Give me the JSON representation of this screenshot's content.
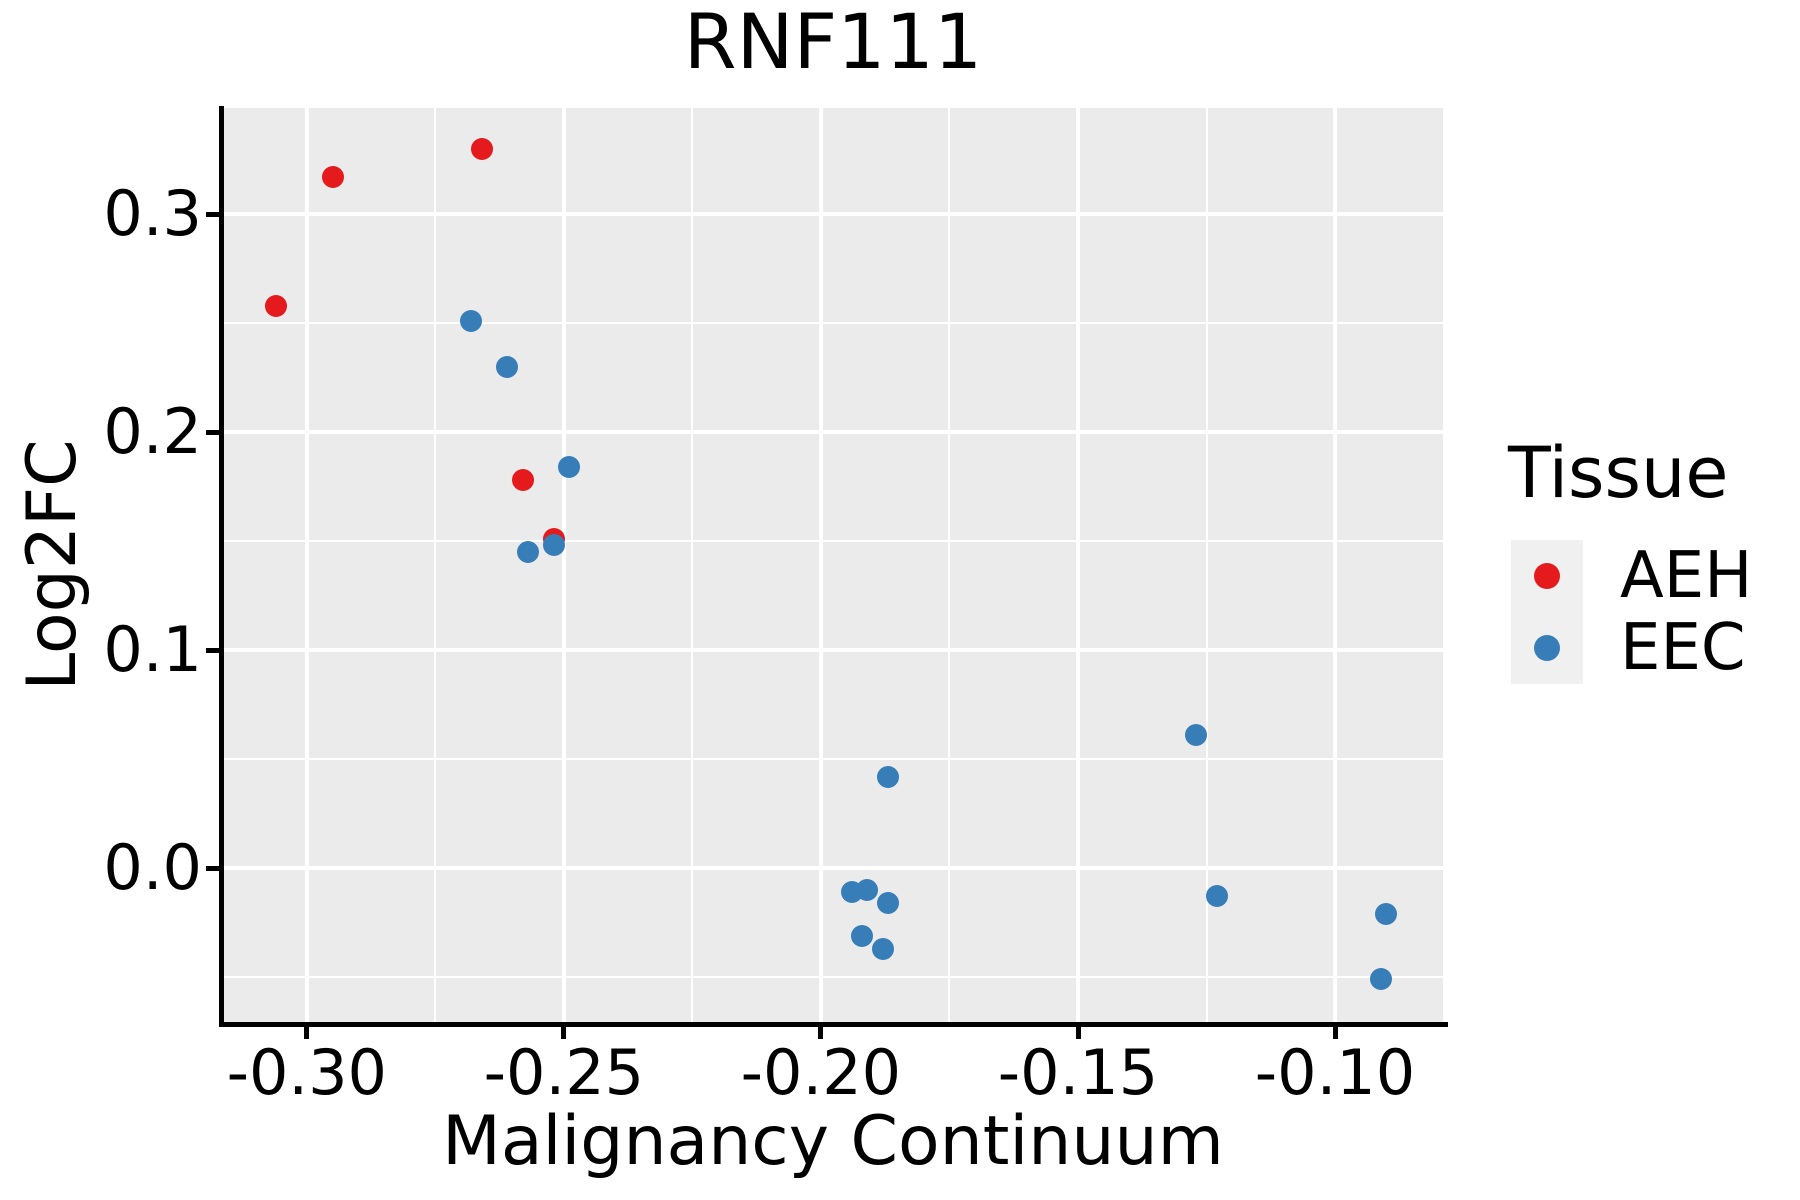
{
  "figure": {
    "title": "RNF111",
    "panel_background": "#EBEBEB",
    "grid_color": "#FFFFFF",
    "axis_color": "#000000",
    "legend_key_background": "#F0F0F0"
  },
  "chart_data": {
    "type": "scatter",
    "title": "RNF111",
    "xlabel": "Malignancy Continuum",
    "ylabel": "Log2FC",
    "xlim": [
      -0.3163,
      -0.079
    ],
    "ylim": [
      -0.0706,
      0.3486
    ],
    "grid": true,
    "legend_position": "right",
    "x_major_ticks": [
      -0.3,
      -0.25,
      -0.2,
      -0.15,
      -0.1
    ],
    "x_tick_labels": [
      "-0.30",
      "-0.25",
      "-0.20",
      "-0.15",
      "-0.10"
    ],
    "x_minor_ticks": [
      -0.275,
      -0.225,
      -0.175,
      -0.125
    ],
    "y_major_ticks": [
      0.3,
      0.2,
      0.1,
      0.0
    ],
    "y_tick_labels": [
      "0.3",
      "0.2",
      "0.1",
      "0.0"
    ],
    "y_minor_ticks": [
      0.25,
      0.15,
      0.05,
      -0.05
    ],
    "series": [
      {
        "name": "AEH",
        "color": "#E41A1C",
        "points": [
          [
            -0.306,
            0.258
          ],
          [
            -0.295,
            0.317
          ],
          [
            -0.266,
            0.33
          ],
          [
            -0.258,
            0.178
          ],
          [
            -0.252,
            0.151
          ]
        ]
      },
      {
        "name": "EEC",
        "color": "#377EB8",
        "points": [
          [
            -0.268,
            0.251
          ],
          [
            -0.261,
            0.23
          ],
          [
            -0.249,
            0.184
          ],
          [
            -0.252,
            0.148
          ],
          [
            -0.257,
            0.145
          ],
          [
            -0.187,
            0.042
          ],
          [
            -0.194,
            -0.011
          ],
          [
            -0.191,
            -0.01
          ],
          [
            -0.187,
            -0.016
          ],
          [
            -0.192,
            -0.031
          ],
          [
            -0.188,
            -0.037
          ],
          [
            -0.127,
            0.061
          ],
          [
            -0.123,
            -0.013
          ],
          [
            -0.09,
            -0.021
          ],
          [
            -0.091,
            -0.051
          ]
        ]
      }
    ]
  },
  "legend": {
    "title": "Tissue",
    "items": [
      {
        "label": "AEH",
        "color": "#E41A1C"
      },
      {
        "label": "EEC",
        "color": "#377EB8"
      }
    ]
  }
}
